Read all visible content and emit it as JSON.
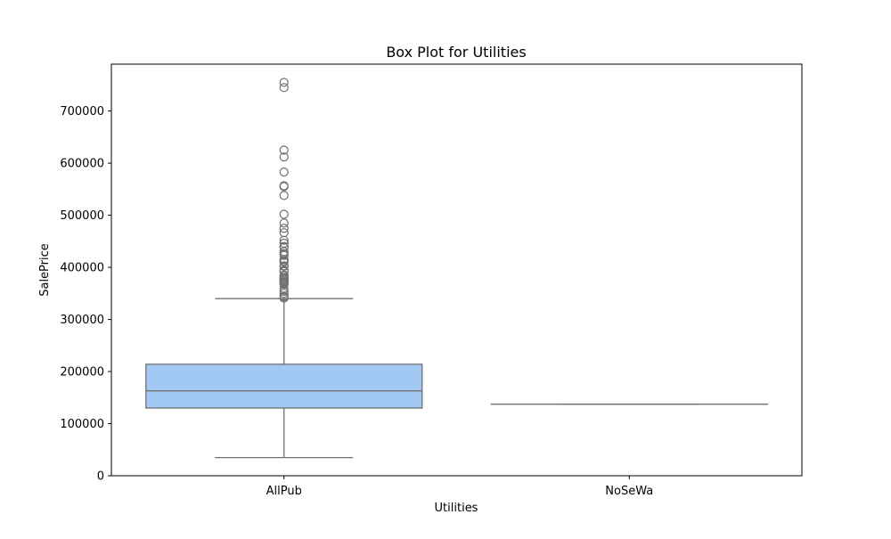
{
  "chart_data": {
    "type": "box",
    "title": "Box Plot for Utilities",
    "xlabel": "Utilities",
    "ylabel": "SalePrice",
    "categories": [
      "AllPub",
      "NoSeWa"
    ],
    "ylim": [
      0,
      790000
    ],
    "yticks": [
      0,
      100000,
      200000,
      300000,
      400000,
      500000,
      600000,
      700000
    ],
    "ytick_labels": [
      "0",
      "100000",
      "200000",
      "300000",
      "400000",
      "500000",
      "600000",
      "700000"
    ],
    "grid": false,
    "legend": "none",
    "box_color": "#a1c9f4",
    "line_color": "#707070",
    "boxes": [
      {
        "category": "AllPub",
        "min": 34900,
        "q1": 129900,
        "median": 163000,
        "q3": 214000,
        "max": 340000,
        "outliers": [
          755000,
          745000,
          625000,
          611657,
          582933,
          556581,
          555000,
          538000,
          501837,
          485000,
          475000,
          466500,
          451950,
          446261,
          440000,
          438780,
          430000,
          426000,
          423000,
          415298,
          412500,
          410000,
          402861,
          402000,
          394617,
          392500,
          392000,
          385000,
          383970,
          381000,
          378500,
          377500,
          377426,
          375000,
          372402,
          372500,
          370878,
          369900,
          367294,
          359100,
          354000,
          350000,
          345000,
          342643,
          341000
        ]
      },
      {
        "category": "NoSeWa",
        "min": 137500,
        "q1": 137500,
        "median": 137500,
        "q3": 137500,
        "max": 137500,
        "outliers": []
      }
    ]
  }
}
